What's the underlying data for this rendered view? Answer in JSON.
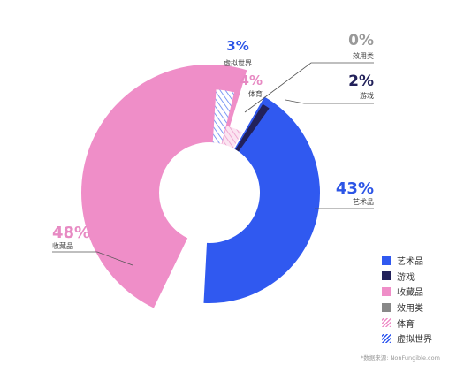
{
  "chart_data": {
    "type": "pie",
    "variant": "donut",
    "title": "",
    "series": [
      {
        "name": "艺术品",
        "value": 43,
        "label": "43%",
        "color": "#3059f0",
        "pattern": "solid"
      },
      {
        "name": "游戏",
        "value": 2,
        "label": "2%",
        "color": "#22215a",
        "pattern": "solid"
      },
      {
        "name": "收藏品",
        "value": 48,
        "label": "48%",
        "color": "#ef8ec8",
        "pattern": "solid"
      },
      {
        "name": "效用类",
        "value": 0,
        "label": "0%",
        "color": "#888888",
        "pattern": "solid"
      },
      {
        "name": "体育",
        "value": 4,
        "label": "4%",
        "color": "#ef8ec8",
        "pattern": "hatch"
      },
      {
        "name": "虚拟世界",
        "value": 3,
        "label": "3%",
        "color": "#3059f0",
        "pattern": "hatch"
      }
    ],
    "label_colors": {
      "艺术品": "#2c55e6",
      "游戏": "#22215a",
      "收藏品": "#e78ac3",
      "效用类": "#999999",
      "体育": "#e78ac3",
      "虚拟世界": "#2c55e6"
    },
    "legend": {
      "position": "bottom-right",
      "order": [
        "艺术品",
        "游戏",
        "收藏品",
        "效用类",
        "体育",
        "虚拟世界"
      ]
    },
    "source": "*数据来源: NonFungible.com"
  }
}
